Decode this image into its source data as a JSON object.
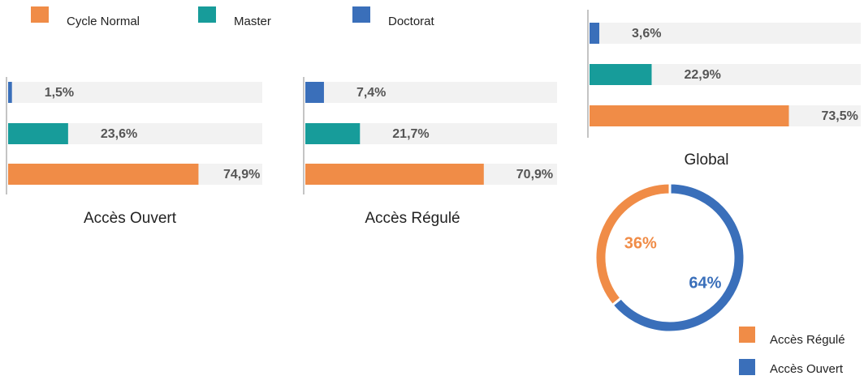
{
  "legend": {
    "items": [
      "Cycle Normal",
      "Master",
      "Doctorat"
    ],
    "colors": [
      "#f08c47",
      "#179c9a",
      "#3a6fba"
    ]
  },
  "chart_data": [
    {
      "type": "bar",
      "title": "Accès Ouvert",
      "values": [
        74.9,
        23.6,
        1.5
      ],
      "value_labels": [
        "74,9%",
        "23,6%",
        "1,5%"
      ],
      "xlim": [
        0,
        100
      ]
    },
    {
      "type": "bar",
      "title": "Accès Régulé",
      "values": [
        70.9,
        21.7,
        7.4
      ],
      "value_labels": [
        "70,9%",
        "21,7%",
        "7,4%"
      ],
      "xlim": [
        0,
        100
      ]
    },
    {
      "type": "bar",
      "title": "Global",
      "values": [
        73.5,
        22.9,
        3.6
      ],
      "value_labels": [
        "73,5%",
        "22,9%",
        "3,6%"
      ],
      "xlim": [
        0,
        100
      ]
    },
    {
      "type": "pie",
      "donut": true,
      "categories": [
        "Accès Régulé",
        "Accès Ouvert"
      ],
      "values": [
        36,
        64
      ],
      "value_labels": [
        "36%",
        "64%"
      ],
      "colors": [
        "#f08c47",
        "#3a6fba"
      ]
    }
  ]
}
